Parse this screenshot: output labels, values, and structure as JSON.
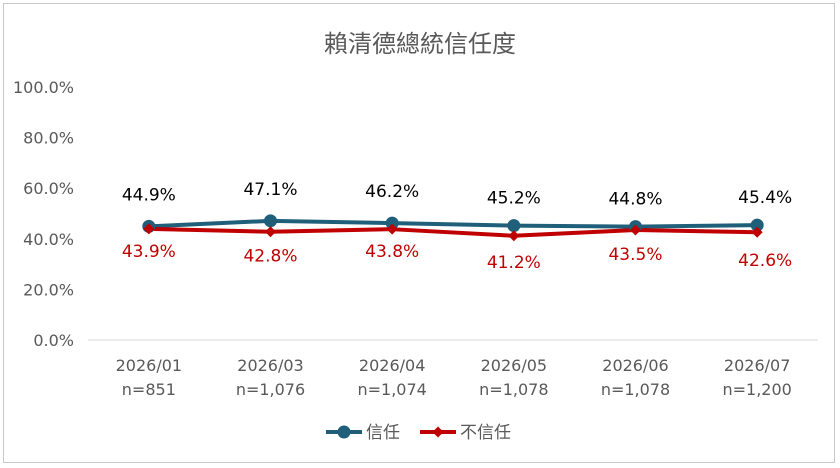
{
  "chart_data": {
    "type": "line",
    "title": "賴清德總統信任度",
    "categories": [
      "2026/01",
      "2026/03",
      "2026/04",
      "2026/05",
      "2026/06",
      "2026/07"
    ],
    "category_sublabels": [
      "n=851",
      "n=1,076",
      "n=1,074",
      "n=1,078",
      "n=1,078",
      "n=1,200"
    ],
    "y_ticks": [
      "0.0%",
      "20.0%",
      "40.0%",
      "60.0%",
      "80.0%",
      "100.0%"
    ],
    "ylim": [
      0,
      100
    ],
    "grid": false,
    "legend_position": "bottom",
    "series": [
      {
        "name": "信任",
        "color": "#1f5f7a",
        "marker": "circle",
        "values": [
          44.9,
          47.1,
          46.2,
          45.2,
          44.8,
          45.4
        ],
        "labels": [
          "44.9%",
          "47.1%",
          "46.2%",
          "45.2%",
          "44.8%",
          "45.4%"
        ]
      },
      {
        "name": "不信任",
        "color": "#c00000",
        "marker": "diamond",
        "values": [
          43.9,
          42.8,
          43.8,
          41.2,
          43.5,
          42.6
        ],
        "labels": [
          "43.9%",
          "42.8%",
          "43.8%",
          "41.2%",
          "43.5%",
          "42.6%"
        ]
      }
    ]
  }
}
